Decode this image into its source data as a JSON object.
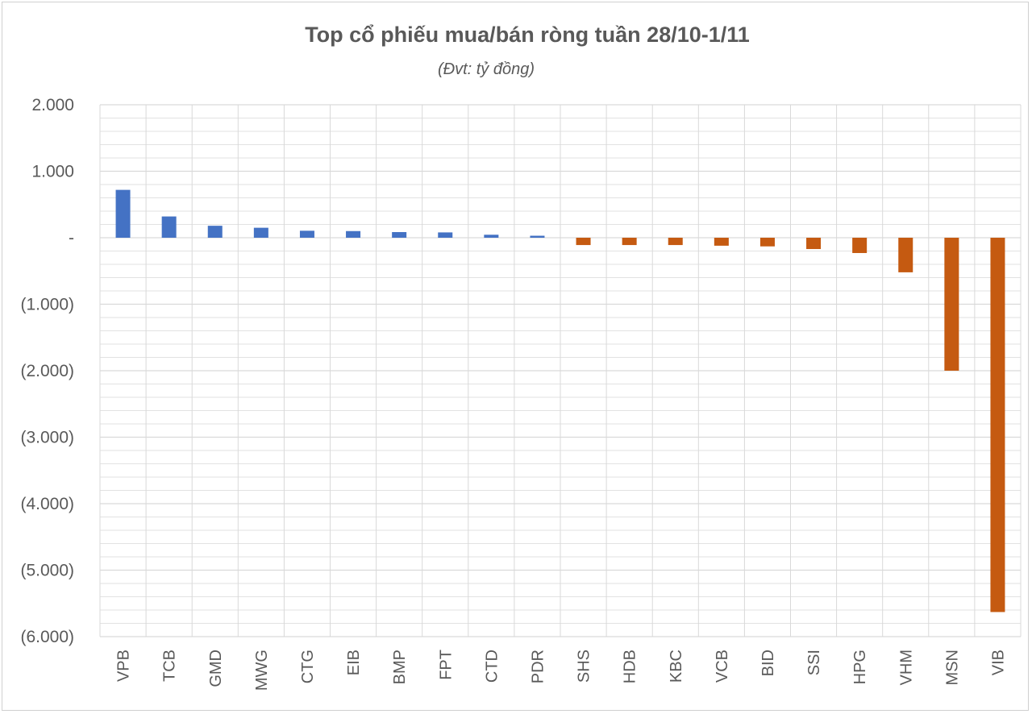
{
  "chart_data": {
    "type": "bar",
    "title": "Top cổ phiếu mua/bán ròng tuần 28/10-1/11",
    "subtitle": "(Đvt: tỷ đồng)",
    "xlabel": "",
    "ylabel": "",
    "ylim": [
      -6000,
      2000
    ],
    "yticks": [
      2000,
      1000,
      0,
      -1000,
      -2000,
      -3000,
      -4000,
      -5000,
      -6000
    ],
    "ytick_labels": [
      "2.000",
      "1.000",
      "-",
      "(1.000)",
      "(2.000)",
      "(3.000)",
      "(4.000)",
      "(5.000)",
      "(6.000)"
    ],
    "grid": true,
    "categories": [
      "VPB",
      "TCB",
      "GMD",
      "MWG",
      "CTG",
      "EIB",
      "BMP",
      "FPT",
      "CTD",
      "PDR",
      "SHS",
      "HDB",
      "KBC",
      "VCB",
      "BID",
      "SSI",
      "HPG",
      "VHM",
      "MSN",
      "VIB"
    ],
    "values": [
      720,
      320,
      180,
      150,
      105,
      100,
      85,
      80,
      45,
      30,
      -110,
      -110,
      -110,
      -120,
      -130,
      -170,
      -230,
      -520,
      -2000,
      -5630
    ],
    "colors": {
      "positive": "#4472C4",
      "negative": "#C55A11",
      "grid": "#d9d9d9",
      "text": "#595959"
    }
  }
}
